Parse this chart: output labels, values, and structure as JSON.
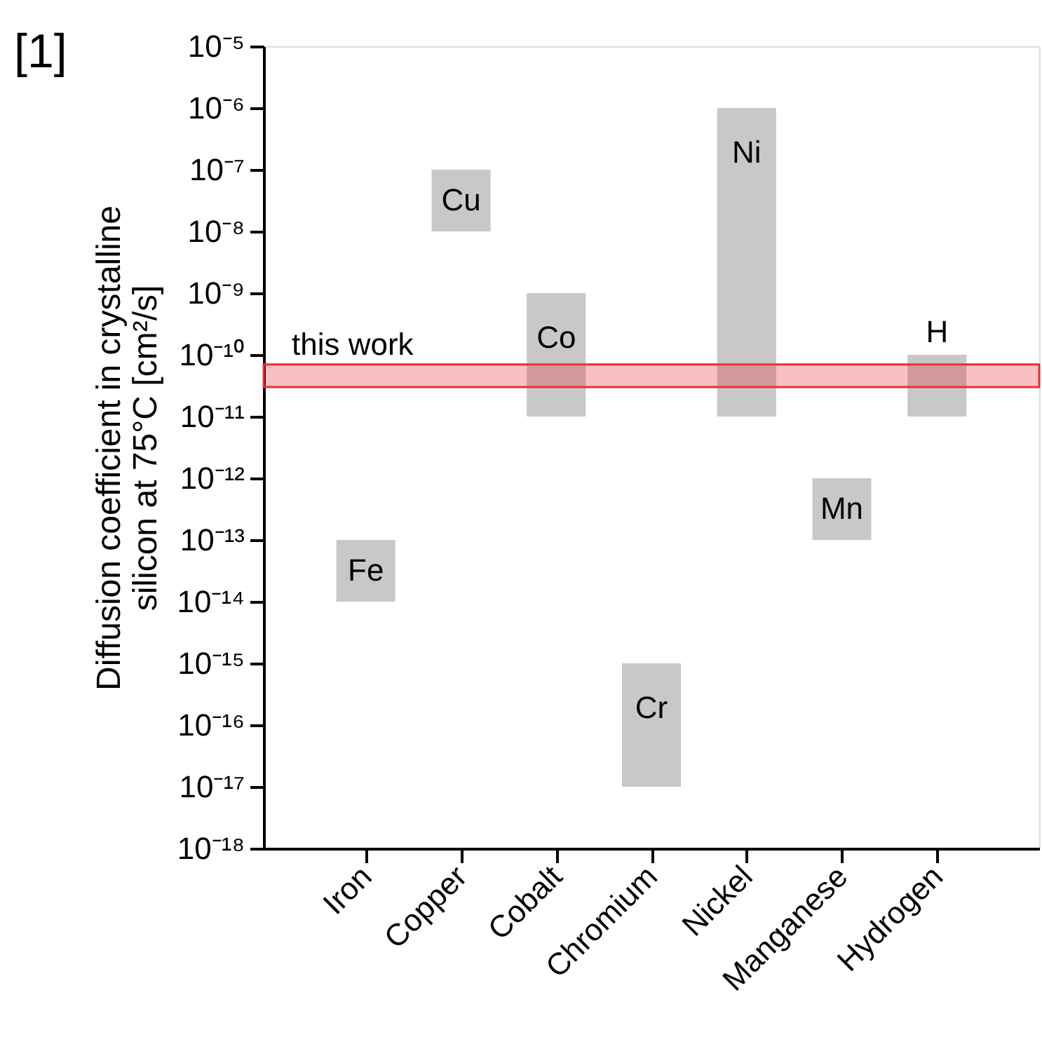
{
  "chart_data": {
    "type": "bar",
    "ylabel": "Diffusion coefficient in crystalline\nsilicon at 75°C [cm²/s]",
    "categories": [
      "Iron",
      "Copper",
      "Cobalt",
      "Chromium",
      "Nickel",
      "Manganese",
      "Hydrogen"
    ],
    "base": [
      1e-14,
      1e-08,
      1e-11,
      1e-17,
      1e-11,
      1e-13,
      1e-11
    ],
    "values": [
      9e-14,
      9e-08,
      9.9e-10,
      9.9e-16,
      9.99e-07,
      9e-13,
      9e-11
    ],
    "color": "#c8c8c8",
    "log": true,
    "ylim": [
      1e-18,
      1e-05
    ],
    "yticks": [
      {
        "value": 1e-18,
        "label": "10⁻¹⁸"
      },
      {
        "value": 1e-17,
        "label": "10⁻¹⁷"
      },
      {
        "value": 1e-16,
        "label": "10⁻¹⁶"
      },
      {
        "value": 1e-15,
        "label": "10⁻¹⁵"
      },
      {
        "value": 1e-14,
        "label": "10⁻¹⁴"
      },
      {
        "value": 1e-13,
        "label": "10⁻¹³"
      },
      {
        "value": 1e-12,
        "label": "10⁻¹²"
      },
      {
        "value": 1e-11,
        "label": "10⁻¹¹"
      },
      {
        "value": 1e-10,
        "label": "10⁻¹⁰"
      },
      {
        "value": 1e-09,
        "label": "10⁻⁹"
      },
      {
        "value": 1e-08,
        "label": "10⁻⁸"
      },
      {
        "value": 1e-07,
        "label": "10⁻⁷"
      },
      {
        "value": 1e-06,
        "label": "10⁻⁶"
      },
      {
        "value": 1e-05,
        "label": "10⁻⁵"
      }
    ],
    "grid": false,
    "bands": [
      {
        "axis": "y",
        "from": 3e-11,
        "to": 7e-11,
        "label": "this work",
        "color": "#e83030"
      }
    ],
    "annotations": [
      "[1]",
      "Fe",
      "Cu",
      "Co",
      "Cr",
      "Ni",
      "Mn",
      "H"
    ]
  }
}
